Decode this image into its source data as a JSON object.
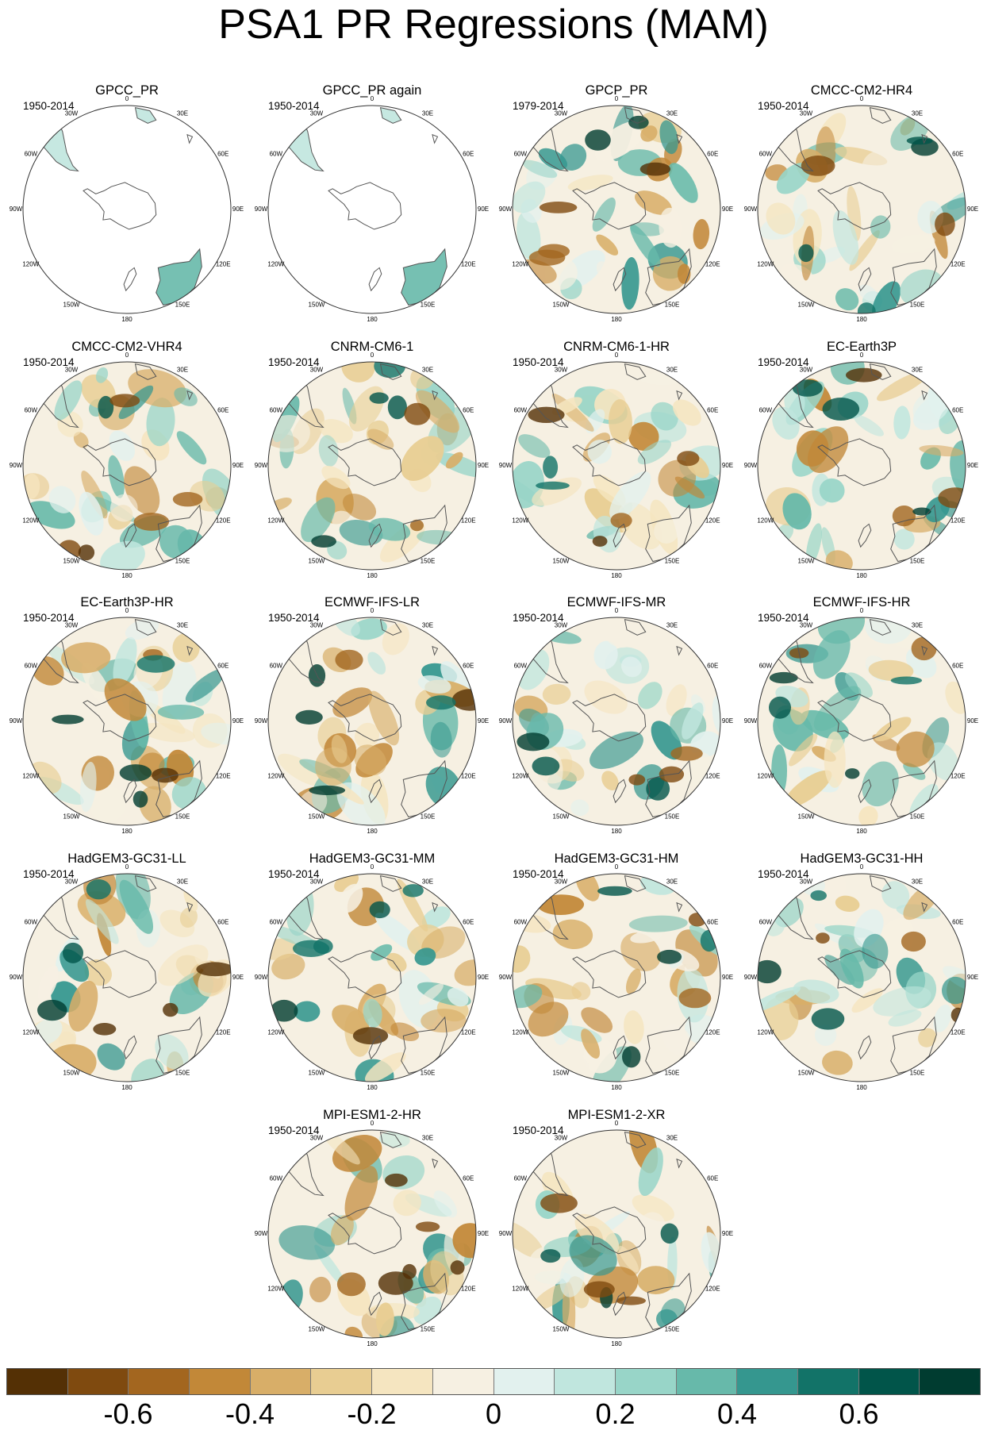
{
  "title": "PSA1 PR Regressions (MAM)",
  "lon_labels": [
    "0",
    "30E",
    "60E",
    "90E",
    "120E",
    "150E",
    "180",
    "150W",
    "120W",
    "90W",
    "60W",
    "30W"
  ],
  "panels": [
    {
      "name": "GPCC_PR",
      "period": "1950-2014",
      "coverage": "land-only"
    },
    {
      "name": "GPCC_PR again",
      "period": "1950-2014",
      "coverage": "land-only"
    },
    {
      "name": "GPCP_PR",
      "period": "1979-2014",
      "coverage": "full"
    },
    {
      "name": "CMCC-CM2-HR4",
      "period": "1950-2014",
      "coverage": "full"
    },
    {
      "name": "CMCC-CM2-VHR4",
      "period": "1950-2014",
      "coverage": "full"
    },
    {
      "name": "CNRM-CM6-1",
      "period": "1950-2014",
      "coverage": "full"
    },
    {
      "name": "CNRM-CM6-1-HR",
      "period": "1950-2014",
      "coverage": "full"
    },
    {
      "name": "EC-Earth3P",
      "period": "1950-2014",
      "coverage": "full"
    },
    {
      "name": "EC-Earth3P-HR",
      "period": "1950-2014",
      "coverage": "full"
    },
    {
      "name": "ECMWF-IFS-LR",
      "period": "1950-2014",
      "coverage": "full"
    },
    {
      "name": "ECMWF-IFS-MR",
      "period": "1950-2014",
      "coverage": "full"
    },
    {
      "name": "ECMWF-IFS-HR",
      "period": "1950-2014",
      "coverage": "full"
    },
    {
      "name": "HadGEM3-GC31-LL",
      "period": "1950-2014",
      "coverage": "full"
    },
    {
      "name": "HadGEM3-GC31-MM",
      "period": "1950-2014",
      "coverage": "full"
    },
    {
      "name": "HadGEM3-GC31-HM",
      "period": "1950-2014",
      "coverage": "full"
    },
    {
      "name": "HadGEM3-GC31-HH",
      "period": "1950-2014",
      "coverage": "full"
    },
    {
      "name": "MPI-ESM1-2-HR",
      "period": "1950-2014",
      "coverage": "full"
    },
    {
      "name": "MPI-ESM1-2-XR",
      "period": "1950-2014",
      "coverage": "full"
    }
  ],
  "colorbar": {
    "colors": [
      "#543005",
      "#7f4a0f",
      "#a3661f",
      "#c28838",
      "#d8ae68",
      "#e8cd92",
      "#f5e5c0",
      "#f6f0e2",
      "#e2f1ee",
      "#c0e6de",
      "#98d5c8",
      "#67b9aa",
      "#35978f",
      "#127368",
      "#01554a",
      "#003c30"
    ],
    "ticks": [
      {
        "label": "-0.6",
        "boundary": 2
      },
      {
        "label": "-0.4",
        "boundary": 4
      },
      {
        "label": "-0.2",
        "boundary": 6
      },
      {
        "label": "0",
        "boundary": 8
      },
      {
        "label": "0.2",
        "boundary": 10
      },
      {
        "label": "0.4",
        "boundary": 12
      },
      {
        "label": "0.6",
        "boundary": 14
      }
    ]
  }
}
